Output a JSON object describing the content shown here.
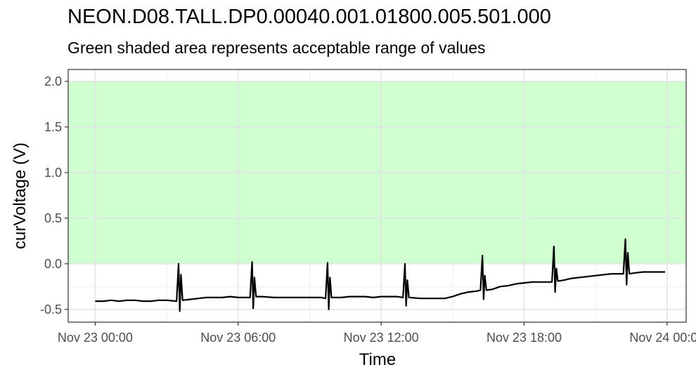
{
  "chart_data": {
    "type": "line",
    "title": "NEON.D08.TALL.DP0.00040.001.01800.005.501.000",
    "subtitle": "Green shaded area represents acceptable range of values",
    "xlabel": "Time",
    "ylabel": "curVoltage (V)",
    "xlim": [
      "2023-11-22T22:52",
      "2023-11-24T00:48"
    ],
    "ylim": [
      -0.64,
      2.13
    ],
    "x_ticks": [
      "Nov 23 00:00",
      "Nov 23 06:00",
      "Nov 23 12:00",
      "Nov 23 18:00",
      "Nov 24 00:00"
    ],
    "y_ticks": [
      "-0.5",
      "0.0",
      "0.5",
      "1.0",
      "1.5",
      "2.0"
    ],
    "y_tick_values": [
      -0.5,
      0.0,
      0.5,
      1.0,
      1.5,
      2.0
    ],
    "acceptable_range": [
      0.0,
      2.0
    ],
    "range_color": "#d0ffd0",
    "line_color": "#000000",
    "spike_color": "#004d00",
    "grid": true,
    "series": [
      {
        "values": [
          [
            "2023-11-23T00:00",
            -0.41
          ],
          [
            "2023-11-23T00:20",
            -0.41
          ],
          [
            "2023-11-23T00:40",
            -0.4
          ],
          [
            "2023-11-23T01:00",
            -0.41
          ],
          [
            "2023-11-23T01:20",
            -0.4
          ],
          [
            "2023-11-23T01:40",
            -0.4
          ],
          [
            "2023-11-23T02:00",
            -0.41
          ],
          [
            "2023-11-23T02:20",
            -0.41
          ],
          [
            "2023-11-23T02:40",
            -0.4
          ],
          [
            "2023-11-23T03:00",
            -0.4
          ],
          [
            "2023-11-23T03:25",
            -0.41
          ],
          [
            "2023-11-23T03:30",
            0.0
          ],
          [
            "2023-11-23T03:33",
            -0.52
          ],
          [
            "2023-11-23T03:36",
            -0.12
          ],
          [
            "2023-11-23T03:40",
            -0.4
          ],
          [
            "2023-11-23T04:00",
            -0.39
          ],
          [
            "2023-11-23T04:20",
            -0.38
          ],
          [
            "2023-11-23T04:40",
            -0.37
          ],
          [
            "2023-11-23T05:00",
            -0.37
          ],
          [
            "2023-11-23T05:20",
            -0.37
          ],
          [
            "2023-11-23T05:40",
            -0.36
          ],
          [
            "2023-11-23T06:00",
            -0.37
          ],
          [
            "2023-11-23T06:20",
            -0.37
          ],
          [
            "2023-11-23T06:30",
            -0.37
          ],
          [
            "2023-11-23T06:35",
            0.02
          ],
          [
            "2023-11-23T06:38",
            -0.49
          ],
          [
            "2023-11-23T06:41",
            -0.15
          ],
          [
            "2023-11-23T06:45",
            -0.36
          ],
          [
            "2023-11-23T07:00",
            -0.36
          ],
          [
            "2023-11-23T07:30",
            -0.37
          ],
          [
            "2023-11-23T08:00",
            -0.37
          ],
          [
            "2023-11-23T08:30",
            -0.37
          ],
          [
            "2023-11-23T09:00",
            -0.37
          ],
          [
            "2023-11-23T09:30",
            -0.37
          ],
          [
            "2023-11-23T09:40",
            -0.38
          ],
          [
            "2023-11-23T09:45",
            0.01
          ],
          [
            "2023-11-23T09:48",
            -0.5
          ],
          [
            "2023-11-23T09:51",
            -0.15
          ],
          [
            "2023-11-23T09:55",
            -0.37
          ],
          [
            "2023-11-23T10:20",
            -0.37
          ],
          [
            "2023-11-23T10:40",
            -0.36
          ],
          [
            "2023-11-23T11:00",
            -0.36
          ],
          [
            "2023-11-23T11:20",
            -0.36
          ],
          [
            "2023-11-23T11:40",
            -0.37
          ],
          [
            "2023-11-23T12:00",
            -0.36
          ],
          [
            "2023-11-23T12:20",
            -0.36
          ],
          [
            "2023-11-23T12:40",
            -0.36
          ],
          [
            "2023-11-23T12:55",
            -0.37
          ],
          [
            "2023-11-23T13:00",
            0.0
          ],
          [
            "2023-11-23T13:03",
            -0.46
          ],
          [
            "2023-11-23T13:06",
            -0.18
          ],
          [
            "2023-11-23T13:10",
            -0.37
          ],
          [
            "2023-11-23T13:40",
            -0.38
          ],
          [
            "2023-11-23T14:00",
            -0.38
          ],
          [
            "2023-11-23T14:20",
            -0.38
          ],
          [
            "2023-11-23T14:40",
            -0.38
          ],
          [
            "2023-11-23T15:00",
            -0.36
          ],
          [
            "2023-11-23T15:20",
            -0.33
          ],
          [
            "2023-11-23T15:40",
            -0.31
          ],
          [
            "2023-11-23T16:00",
            -0.3
          ],
          [
            "2023-11-23T16:10",
            -0.29
          ],
          [
            "2023-11-23T16:15",
            0.09
          ],
          [
            "2023-11-23T16:18",
            -0.39
          ],
          [
            "2023-11-23T16:21",
            -0.13
          ],
          [
            "2023-11-23T16:25",
            -0.29
          ],
          [
            "2023-11-23T16:40",
            -0.28
          ],
          [
            "2023-11-23T17:00",
            -0.25
          ],
          [
            "2023-11-23T17:20",
            -0.24
          ],
          [
            "2023-11-23T17:40",
            -0.22
          ],
          [
            "2023-11-23T18:00",
            -0.21
          ],
          [
            "2023-11-23T18:20",
            -0.2
          ],
          [
            "2023-11-23T18:40",
            -0.2
          ],
          [
            "2023-11-23T19:00",
            -0.2
          ],
          [
            "2023-11-23T19:10",
            -0.2
          ],
          [
            "2023-11-23T19:15",
            0.19
          ],
          [
            "2023-11-23T19:18",
            -0.31
          ],
          [
            "2023-11-23T19:21",
            -0.05
          ],
          [
            "2023-11-23T19:25",
            -0.19
          ],
          [
            "2023-11-23T19:40",
            -0.18
          ],
          [
            "2023-11-23T20:00",
            -0.16
          ],
          [
            "2023-11-23T20:20",
            -0.15
          ],
          [
            "2023-11-23T20:40",
            -0.14
          ],
          [
            "2023-11-23T21:00",
            -0.13
          ],
          [
            "2023-11-23T21:20",
            -0.12
          ],
          [
            "2023-11-23T21:40",
            -0.11
          ],
          [
            "2023-11-23T22:00",
            -0.11
          ],
          [
            "2023-11-23T22:10",
            -0.11
          ],
          [
            "2023-11-23T22:15",
            0.27
          ],
          [
            "2023-11-23T22:18",
            -0.23
          ],
          [
            "2023-11-23T22:21",
            0.12
          ],
          [
            "2023-11-23T22:25",
            -0.11
          ],
          [
            "2023-11-23T22:40",
            -0.1
          ],
          [
            "2023-11-23T23:00",
            -0.09
          ],
          [
            "2023-11-23T23:20",
            -0.09
          ],
          [
            "2023-11-23T23:40",
            -0.09
          ],
          [
            "2023-11-23T23:55",
            -0.09
          ]
        ]
      }
    ]
  }
}
